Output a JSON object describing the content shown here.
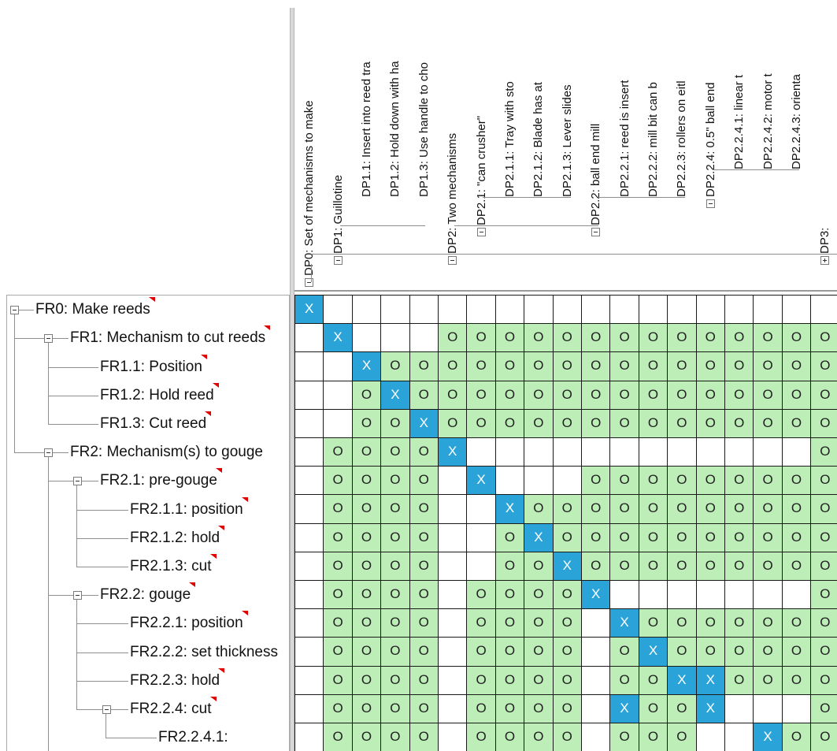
{
  "fr_tree": [
    {
      "id": "FR0",
      "label": "FR0: Make reeds",
      "level": 0,
      "expanded": true,
      "flag": true
    },
    {
      "id": "FR1",
      "label": "FR1: Mechanism to cut reeds",
      "level": 1,
      "expanded": true,
      "flag": true
    },
    {
      "id": "FR1.1",
      "label": "FR1.1: Position",
      "level": 2,
      "flag": true
    },
    {
      "id": "FR1.2",
      "label": "FR1.2: Hold reed",
      "level": 2,
      "flag": true
    },
    {
      "id": "FR1.3",
      "label": "FR1.3: Cut reed",
      "level": 2,
      "flag": true
    },
    {
      "id": "FR2",
      "label": "FR2: Mechanism(s) to gouge",
      "level": 1,
      "expanded": true,
      "flag": false
    },
    {
      "id": "FR2.1",
      "label": "FR2.1: pre-gouge",
      "level": 2,
      "expanded": true,
      "flag": true
    },
    {
      "id": "FR2.1.1",
      "label": "FR2.1.1: position",
      "level": 3,
      "flag": true
    },
    {
      "id": "FR2.1.2",
      "label": "FR2.1.2: hold",
      "level": 3,
      "flag": true
    },
    {
      "id": "FR2.1.3",
      "label": "FR2.1.3: cut",
      "level": 3,
      "flag": true
    },
    {
      "id": "FR2.2",
      "label": "FR2.2: gouge",
      "level": 2,
      "expanded": true,
      "flag": true
    },
    {
      "id": "FR2.2.1",
      "label": "FR2.2.1: position",
      "level": 3,
      "flag": true
    },
    {
      "id": "FR2.2.2",
      "label": "FR2.2.2: set thickness",
      "level": 3,
      "flag": false
    },
    {
      "id": "FR2.2.3",
      "label": "FR2.2.3: hold",
      "level": 3,
      "flag": true
    },
    {
      "id": "FR2.2.4",
      "label": "FR2.2.4: cut",
      "level": 3,
      "expanded": true,
      "flag": true
    },
    {
      "id": "FR2.2.4.1",
      "label": "FR2.2.4.1:",
      "level": 4,
      "flag": false
    }
  ],
  "dp_columns": [
    {
      "id": "DP0",
      "label": "DP0: Set of mechanisms to make",
      "expanded": true
    },
    {
      "id": "DP1",
      "label": "DP1: Guillotine",
      "expanded": true
    },
    {
      "id": "DP1.1",
      "label": "DP1.1: Insert into reed tra"
    },
    {
      "id": "DP1.2",
      "label": "DP1.2: Hold down with ha"
    },
    {
      "id": "DP1.3",
      "label": "DP1.3: Use handle to cho"
    },
    {
      "id": "DP2",
      "label": "DP2: Two mechanisms",
      "expanded": true
    },
    {
      "id": "DP2.1",
      "label": "DP2.1: \"can crusher\"",
      "expanded": true
    },
    {
      "id": "DP2.1.1",
      "label": "DP2.1.1: Tray with sto"
    },
    {
      "id": "DP2.1.2",
      "label": "DP2.1.2: Blade has at"
    },
    {
      "id": "DP2.1.3",
      "label": "DP2.1.3: Lever slides"
    },
    {
      "id": "DP2.2",
      "label": "DP2.2: ball end mill",
      "expanded": true
    },
    {
      "id": "DP2.2.1",
      "label": "DP2.2.1: reed is insert"
    },
    {
      "id": "DP2.2.2",
      "label": "DP2.2.2: mill bit can b"
    },
    {
      "id": "DP2.2.3",
      "label": "DP2.2.3: rollers on eitl"
    },
    {
      "id": "DP2.2.4",
      "label": "DP2.2.4: 0.5\" ball end",
      "expanded": true
    },
    {
      "id": "DP2.2.4.1",
      "label": "DP2.2.4.1: linear t"
    },
    {
      "id": "DP2.2.4.2",
      "label": "DP2.2.4.2: motor t"
    },
    {
      "id": "DP2.2.4.3",
      "label": "DP2.2.4.3: orienta"
    },
    {
      "id": "DP3",
      "label": "DP3:",
      "expanded": false
    }
  ],
  "matrix": [
    "X..................",
    ".X...OOOOOOOOOOOOOO",
    "..XOOOOOOOOOOOOOOOO",
    "..OXOOOOOOOOOOOOOOO",
    "..OOXOOOOOOOOOOOOOO",
    ".OOOOX............O",
    ".OOOO.X...OOOOOOOOO",
    ".OOOO..XOOOOOOOOOOO",
    ".OOOO..OXOOOOOOOOOO",
    ".OOOO..OOXOOOOOOOOO",
    ".OOOO.OOOOX.......O",
    ".OOOO.OOOO.XOOOOOOO",
    ".OOOO.OOOO.OXOOOOOO",
    ".OOOO.OOOO.OOXXOOOO",
    ".OOOO.OOOO.XOOX...O",
    ".OOOO.OOOO.OOO..XOO"
  ],
  "cell_marks": {
    "X": "X",
    "O": "O"
  }
}
